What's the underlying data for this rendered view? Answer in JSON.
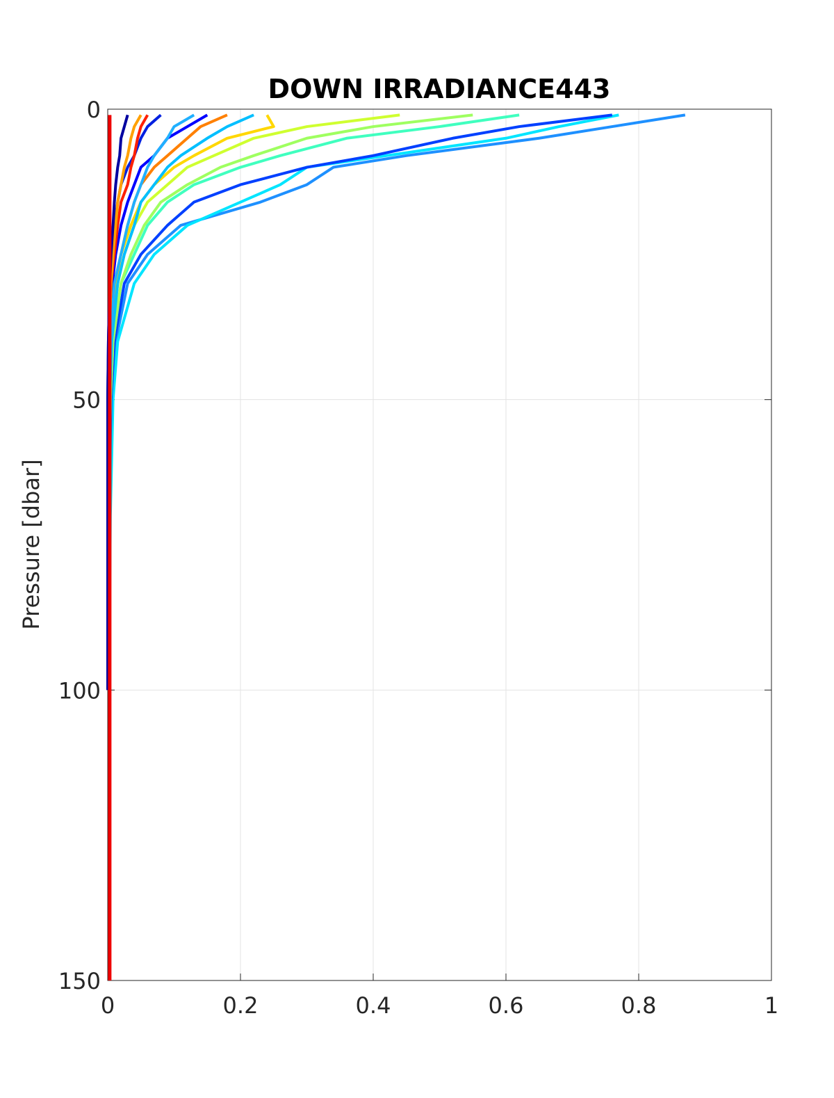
{
  "chart_data": {
    "type": "line",
    "title": "DOWN IRRADIANCE443",
    "y_label": "Pressure [dbar]",
    "y_reversed": true,
    "grid": true,
    "xlim": [
      0,
      1
    ],
    "xticks": [
      0,
      0.2,
      0.4,
      0.6,
      0.8,
      1
    ],
    "ylim": [
      0,
      150
    ],
    "yticks": [
      0,
      50,
      100,
      150
    ],
    "y": [
      1,
      3,
      5,
      8,
      10,
      13,
      16,
      20,
      25,
      30,
      40,
      50,
      70,
      100,
      150
    ],
    "series": [
      {
        "color": "#1e90ff",
        "values": [
          0.87,
          0.76,
          0.65,
          0.45,
          0.34,
          0.3,
          0.23,
          0.11,
          0.06,
          0.03,
          0.012,
          0.006,
          0.003,
          0.001,
          null
        ]
      },
      {
        "color": "#00e5ff",
        "values": [
          0.77,
          0.68,
          0.6,
          0.42,
          0.3,
          0.26,
          0.2,
          0.12,
          0.07,
          0.04,
          0.015,
          0.008,
          0.004,
          0.002,
          null
        ]
      },
      {
        "color": "#0040ff",
        "values": [
          0.76,
          0.62,
          0.52,
          0.4,
          0.3,
          0.2,
          0.13,
          0.09,
          0.05,
          0.025,
          0.01,
          0.005,
          0.002,
          0.001,
          null
        ]
      },
      {
        "color": "#40ffbf",
        "values": [
          0.62,
          0.5,
          0.36,
          0.26,
          0.2,
          0.13,
          0.09,
          0.06,
          0.04,
          0.02,
          0.008,
          0.004,
          0.002,
          0.001,
          null
        ]
      },
      {
        "color": "#9fff60",
        "values": [
          0.55,
          0.4,
          0.3,
          0.22,
          0.17,
          0.12,
          0.08,
          0.055,
          0.035,
          0.02,
          0.008,
          0.004,
          0.002,
          0.001,
          null
        ]
      },
      {
        "color": "#cfff30",
        "values": [
          0.44,
          0.3,
          0.22,
          0.16,
          0.12,
          0.09,
          0.06,
          0.04,
          0.025,
          0.015,
          0.006,
          0.003,
          0.001,
          0.0005,
          null
        ]
      },
      {
        "color": "#ffd700",
        "values": [
          0.24,
          0.25,
          0.18,
          0.13,
          0.1,
          0.07,
          0.05,
          0.035,
          0.02,
          0.012,
          0.005,
          0.002,
          0.001,
          0,
          null
        ]
      },
      {
        "color": "#00bfff",
        "values": [
          0.22,
          0.18,
          0.15,
          0.11,
          0.09,
          0.07,
          0.05,
          0.04,
          0.025,
          0.015,
          0.006,
          0.003,
          0.001,
          0,
          null
        ]
      },
      {
        "color": "#ff8000",
        "values": [
          0.18,
          0.14,
          0.12,
          0.09,
          0.07,
          0.05,
          0.04,
          0.03,
          0.02,
          0.01,
          0.004,
          0.002,
          0.001,
          0,
          null
        ]
      },
      {
        "color": "#0000ff",
        "values": [
          0.15,
          0.12,
          0.09,
          0.07,
          0.05,
          0.04,
          0.03,
          0.02,
          0.012,
          0.007,
          0.003,
          0.001,
          0,
          0,
          null
        ]
      },
      {
        "color": "#20b0ff",
        "values": [
          0.13,
          0.1,
          0.09,
          0.07,
          0.06,
          0.05,
          0.04,
          0.03,
          0.02,
          0.01,
          0.004,
          0.002,
          0.001,
          0,
          null
        ]
      },
      {
        "color": "#0020e0",
        "values": [
          0.08,
          0.06,
          0.05,
          0.04,
          0.03,
          0.02,
          0.015,
          0.01,
          0.006,
          0.003,
          0.001,
          0,
          0,
          0,
          null
        ]
      },
      {
        "color": "#ff2000",
        "values": [
          0.06,
          0.05,
          0.045,
          0.04,
          0.035,
          0.03,
          0.02,
          0.015,
          0.01,
          0.005,
          0.002,
          0.001,
          0,
          0,
          null
        ]
      },
      {
        "color": "#ffa000",
        "values": [
          0.05,
          0.04,
          0.035,
          0.03,
          0.025,
          0.02,
          0.015,
          0.012,
          0.008,
          0.005,
          0.002,
          0.001,
          0,
          0,
          null
        ]
      },
      {
        "color": "#0000a0",
        "values": [
          0.03,
          0.025,
          0.02,
          0.018,
          0.015,
          0.012,
          0.01,
          0.008,
          0.005,
          0.003,
          0.001,
          0,
          0,
          0,
          null
        ]
      },
      {
        "color": "#ee0000",
        "values": [
          0.003,
          0.003,
          0.003,
          0.003,
          0.003,
          0.003,
          0.003,
          0.003,
          0.003,
          0.003,
          0.003,
          0.003,
          0.003,
          0.003,
          0.003
        ]
      }
    ]
  }
}
